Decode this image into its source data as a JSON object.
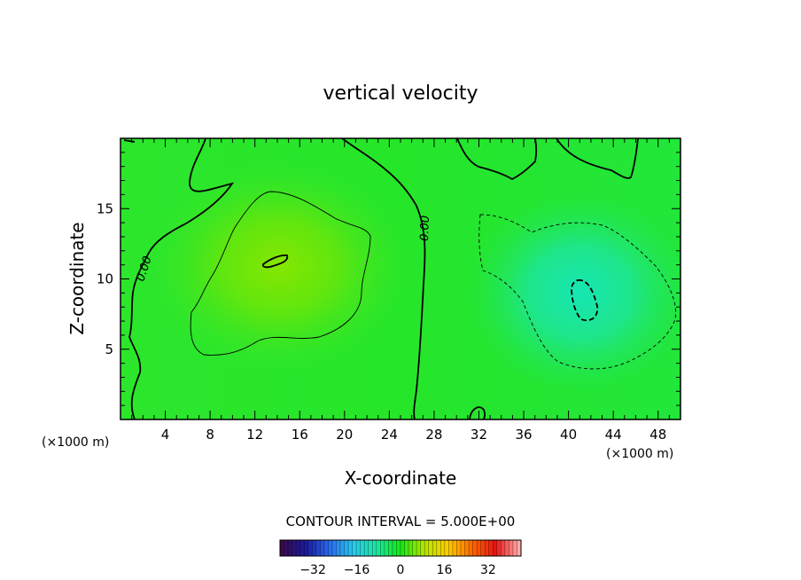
{
  "chart_data": {
    "type": "heatmap",
    "title": "vertical velocity",
    "xlabel": "X-coordinate",
    "ylabel": "Z-coordinate",
    "x_unit_left": "(×1000 m)",
    "x_unit_right": "(×1000 m)",
    "xlim": [
      0,
      50
    ],
    "ylim": [
      0,
      20
    ],
    "x_ticks": [
      4,
      8,
      12,
      16,
      20,
      24,
      28,
      32,
      36,
      40,
      44,
      48
    ],
    "y_ticks": [
      5,
      10,
      15
    ],
    "contour_interval_text": "CONTOUR INTERVAL = 5.000E+00",
    "contour_labels": [
      "0.00",
      "0.00",
      "0.00"
    ],
    "colorbar": {
      "range": [
        -44,
        44
      ],
      "ticks": [
        -32,
        -16,
        0,
        16,
        32
      ],
      "colors": [
        "#3a0a4a",
        "#1a1a9a",
        "#2a6aee",
        "#28c8ee",
        "#1ee6a0",
        "#14e614",
        "#b4e600",
        "#ffcc00",
        "#ff6a00",
        "#e61414",
        "#ffaaaa"
      ]
    },
    "field": {
      "background": 2,
      "features": [
        {
          "kind": "updraft",
          "x": 14,
          "z": 11,
          "peak": 6.2
        },
        {
          "kind": "downdraft",
          "x": 41,
          "z": 8.5,
          "peak": -11
        }
      ]
    },
    "grid": false,
    "legend": "none"
  }
}
